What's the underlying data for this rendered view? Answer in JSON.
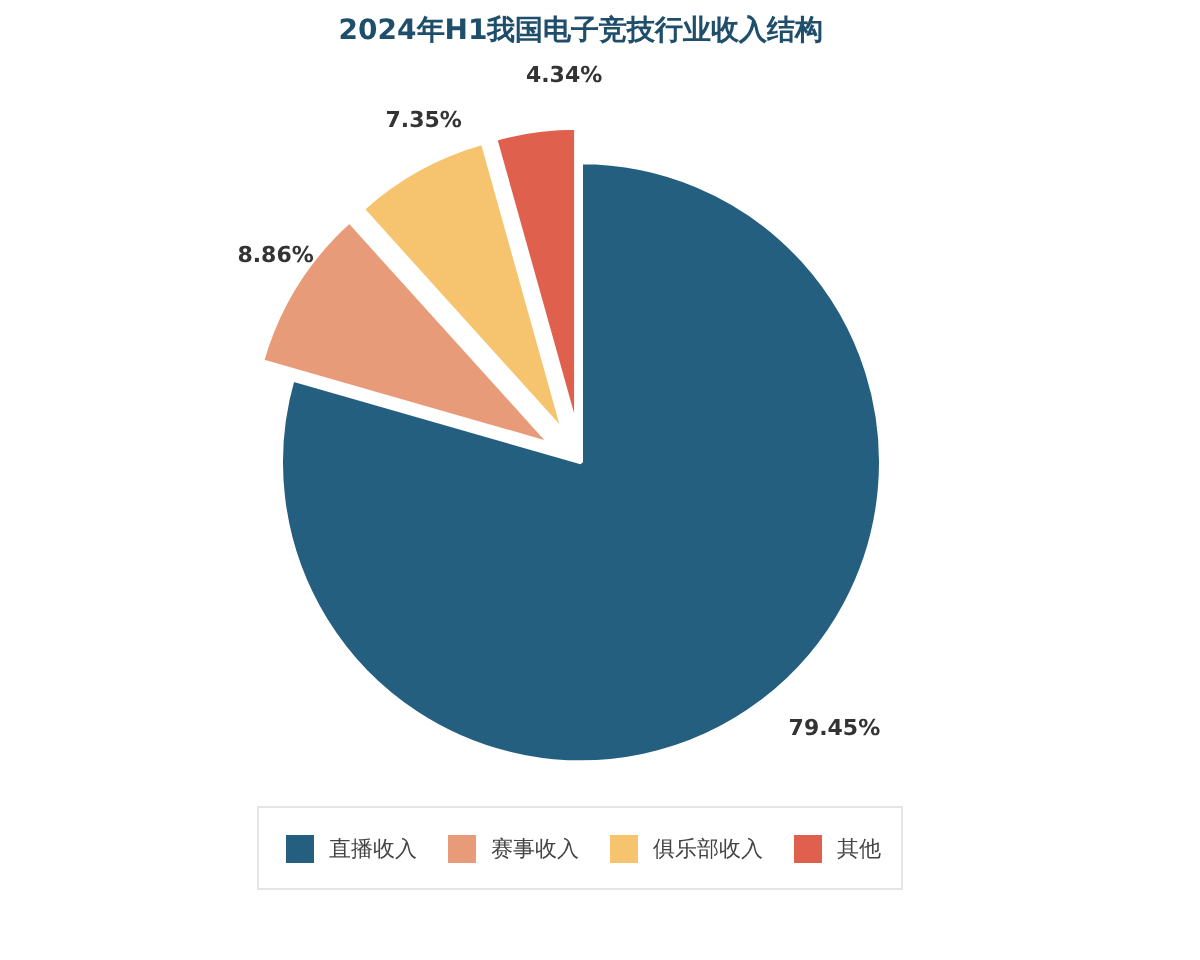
{
  "chart_data": {
    "type": "pie",
    "title": "2024年H1我国电子竞技行业收入结构",
    "categories": [
      "直播收入",
      "赛事收入",
      "俱乐部收入",
      "其他"
    ],
    "values": [
      79.45,
      8.86,
      7.35,
      4.34
    ],
    "value_labels": [
      "79.45%",
      "8.86%",
      "7.35%",
      "4.34%"
    ],
    "colors": [
      "#245f80",
      "#e89b78",
      "#f6c46e",
      "#e0604e"
    ],
    "legend": "bottom"
  }
}
